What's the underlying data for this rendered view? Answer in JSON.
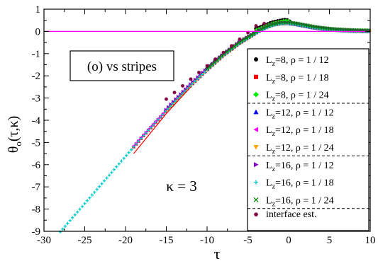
{
  "chart_data": {
    "type": "scatter",
    "xlabel": "τ",
    "ylabel_main": "θ",
    "ylabel_sub": "o",
    "ylabel_args": "(τ,κ)",
    "xlim": [
      -30,
      10
    ],
    "ylim": [
      -9,
      1
    ],
    "xticks": [
      -30,
      -25,
      -20,
      -15,
      -10,
      -5,
      0,
      5,
      10
    ],
    "yticks": [
      1,
      0,
      -1,
      -2,
      -3,
      -4,
      -5,
      -6,
      -7,
      -8,
      -9
    ],
    "grid": false,
    "zero_line_color": "#ff00ff",
    "annotations": {
      "box_label": "(o) vs stripes",
      "kappa_label": "κ = 3"
    },
    "legend": {
      "placement": "right",
      "groups": [
        [
          {
            "lz": "8",
            "rho": "1 / 12",
            "symbol": "circle",
            "color": "#000000"
          },
          {
            "lz": "8",
            "rho": "1 / 18",
            "symbol": "square",
            "color": "#ff0000"
          },
          {
            "lz": "8",
            "rho": "1 / 24",
            "symbol": "diamond",
            "color": "#00ee00"
          }
        ],
        [
          {
            "lz": "12",
            "rho": "1 / 12",
            "symbol": "triangle-up",
            "color": "#0000ff"
          },
          {
            "lz": "12",
            "rho": "1 / 18",
            "symbol": "triangle-left",
            "color": "#ff00ff"
          },
          {
            "lz": "12",
            "rho": "1 / 24",
            "symbol": "triangle-down",
            "color": "#ffa500"
          }
        ],
        [
          {
            "lz": "16",
            "rho": "1 / 12",
            "symbol": "triangle-right",
            "color": "#8000c0"
          },
          {
            "lz": "16",
            "rho": "1 / 18",
            "symbol": "plus",
            "color": "#00cccc"
          },
          {
            "lz": "16",
            "rho": "1 / 24",
            "symbol": "x",
            "color": "#008000"
          }
        ]
      ],
      "interface": {
        "label": "interface est.",
        "symbol": "star",
        "color": "#800040"
      }
    },
    "series": [
      {
        "lz": "8",
        "rho": "1 / 12",
        "x_start": -10,
        "color": "#000000",
        "symbol": "circle"
      },
      {
        "lz": "8",
        "rho": "1 / 18",
        "x_start": -19,
        "color": "#ff0000",
        "symbol": "square"
      },
      {
        "lz": "8",
        "rho": "1 / 24",
        "x_start": -10,
        "color": "#00ee00",
        "symbol": "diamond"
      },
      {
        "lz": "12",
        "rho": "1 / 12",
        "x_start": -12,
        "color": "#0000ff",
        "symbol": "triangle-up"
      },
      {
        "lz": "12",
        "rho": "1 / 18",
        "x_start": -19,
        "color": "#ff00ff",
        "symbol": "triangle-left"
      },
      {
        "lz": "12",
        "rho": "1 / 24",
        "x_start": -15,
        "color": "#ffa500",
        "symbol": "triangle-down"
      },
      {
        "lz": "16",
        "rho": "1 / 12",
        "x_start": -15,
        "color": "#8000c0",
        "symbol": "triangle-right"
      },
      {
        "lz": "16",
        "rho": "1 / 18",
        "x_start": -28,
        "color": "#00cccc",
        "symbol": "plus"
      },
      {
        "lz": "16",
        "rho": "1 / 24",
        "x_start": -10,
        "color": "#008000",
        "symbol": "x"
      }
    ],
    "interface_estimate": {
      "points": [
        [
          -15,
          -3.05
        ],
        [
          -14,
          -2.75
        ],
        [
          -13,
          -2.45
        ],
        [
          -12,
          -2.15
        ],
        [
          -11,
          -1.85
        ],
        [
          -10,
          -1.55
        ],
        [
          -9,
          -1.25
        ],
        [
          -8,
          -0.95
        ],
        [
          -7,
          -0.65
        ],
        [
          -6,
          -0.35
        ],
        [
          -5,
          -0.05
        ],
        [
          -4,
          0.25
        ],
        [
          -3,
          0.35
        ]
      ],
      "color": "#800040",
      "symbol": "star"
    },
    "curve": [
      [
        -28,
        -9.0
      ],
      [
        -26,
        -8.15
      ],
      [
        -24,
        -7.3
      ],
      [
        -22,
        -6.45
      ],
      [
        -20,
        -5.6
      ],
      [
        -18,
        -4.75
      ],
      [
        -16,
        -3.95
      ],
      [
        -14,
        -3.15
      ],
      [
        -12,
        -2.4
      ],
      [
        -10,
        -1.7
      ],
      [
        -8,
        -1.05
      ],
      [
        -6,
        -0.5
      ],
      [
        -4,
        -0.05
      ],
      [
        -3,
        0.15
      ],
      [
        -2,
        0.3
      ],
      [
        -1,
        0.37
      ],
      [
        0,
        0.38
      ],
      [
        1,
        0.33
      ],
      [
        2,
        0.26
      ],
      [
        3,
        0.19
      ],
      [
        4,
        0.14
      ],
      [
        5,
        0.1
      ],
      [
        6,
        0.07
      ],
      [
        7,
        0.05
      ],
      [
        8,
        0.035
      ],
      [
        9,
        0.025
      ],
      [
        10,
        0.02
      ]
    ],
    "peak_curve": [
      [
        -4,
        0.1
      ],
      [
        -3,
        0.25
      ],
      [
        -2,
        0.4
      ],
      [
        -1,
        0.48
      ],
      [
        -0.5,
        0.52
      ],
      [
        0,
        0.5
      ],
      [
        0.4,
        0.38
      ]
    ]
  }
}
